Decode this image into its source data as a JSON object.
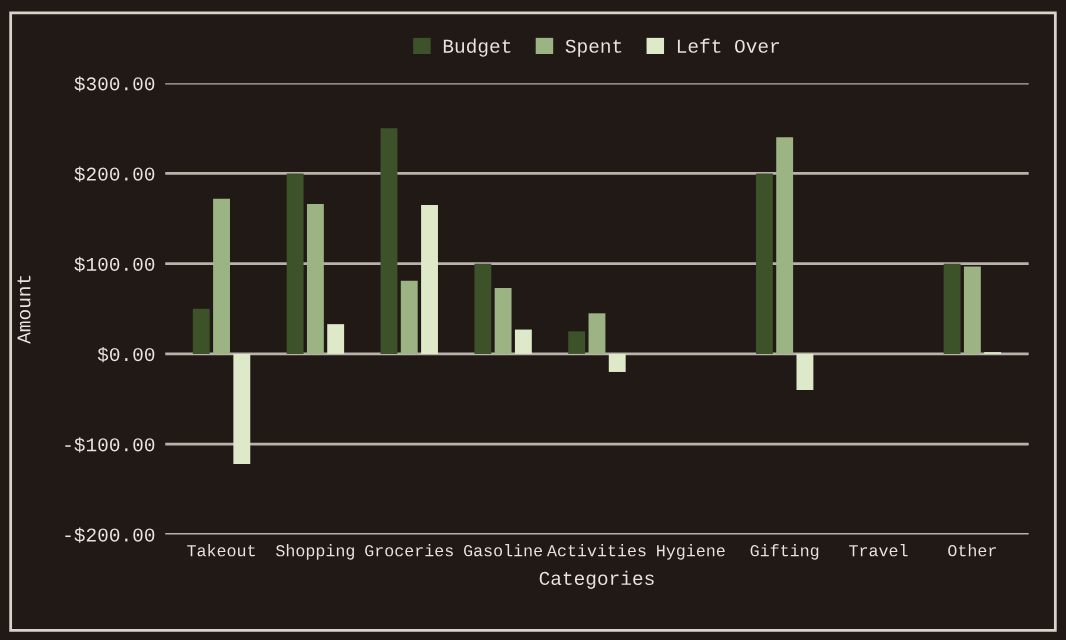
{
  "chart_data": {
    "type": "bar",
    "xlabel": "Categories",
    "ylabel": "Amount",
    "categories": [
      "Takeout",
      "Shopping",
      "Groceries",
      "Gasoline",
      "Activities",
      "Hygiene",
      "Gifting",
      "Travel",
      "Other"
    ],
    "series": [
      {
        "name": "Budget",
        "color": "#3d5229",
        "values": [
          50,
          200,
          250,
          100,
          25,
          0,
          200,
          0,
          100
        ]
      },
      {
        "name": "Spent",
        "color": "#9cb383",
        "values": [
          172,
          166,
          81,
          73,
          45,
          0,
          240,
          0,
          97
        ]
      },
      {
        "name": "Left Over",
        "color": "#dde9c9",
        "values": [
          -122,
          33,
          165,
          27,
          -20,
          0,
          -40,
          0,
          2
        ]
      }
    ],
    "ylim": [
      -200,
      300
    ],
    "yticks": [
      {
        "value": -200,
        "label": "-$200.00"
      },
      {
        "value": -100,
        "label": "-$100.00"
      },
      {
        "value": 0,
        "label": "$0.00"
      },
      {
        "value": 100,
        "label": "$100.00"
      },
      {
        "value": 200,
        "label": "$200.00"
      },
      {
        "value": 300,
        "label": "$300.00"
      }
    ],
    "grid": "y",
    "legend": "top"
  }
}
